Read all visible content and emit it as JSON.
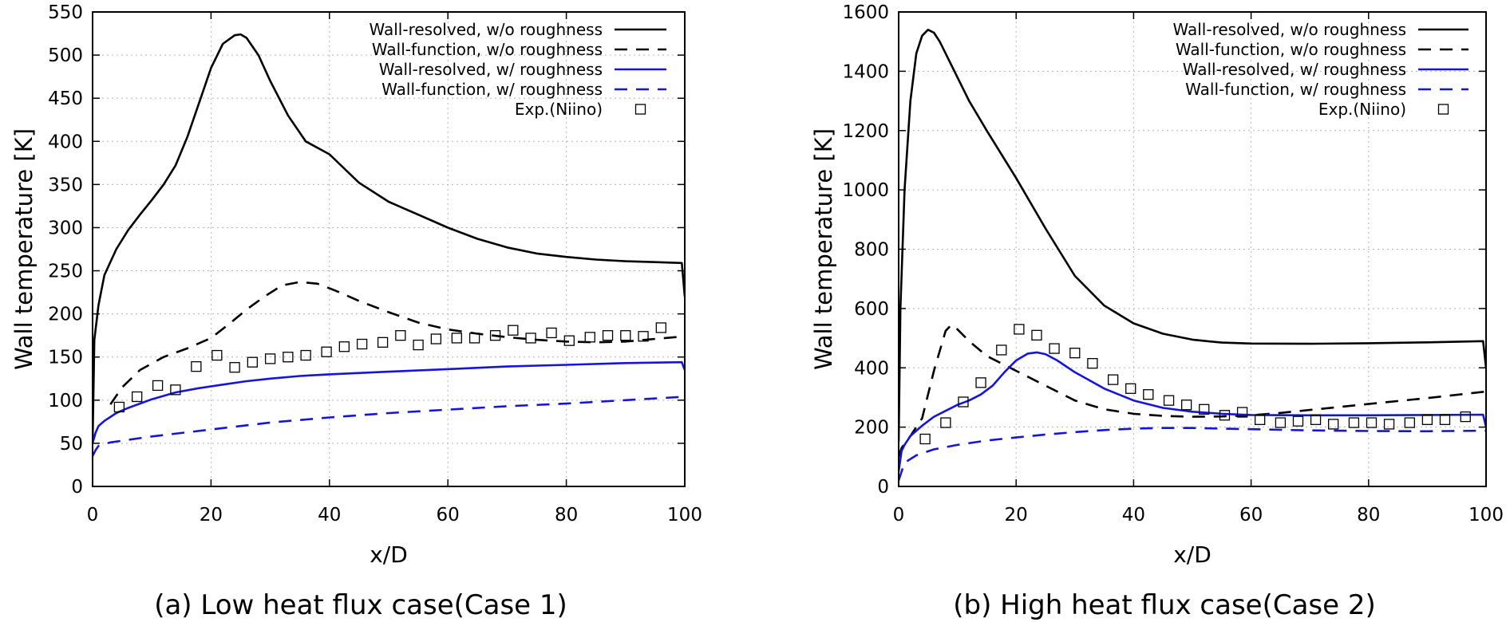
{
  "chart_data": [
    {
      "type": "line",
      "caption": "(a) Low heat flux case(Case 1)",
      "xlabel": "x/D",
      "ylabel": "Wall temperature [K]",
      "xlim": [
        0,
        100
      ],
      "ylim": [
        0,
        550
      ],
      "xticks": [
        0,
        20,
        40,
        60,
        80,
        100
      ],
      "yticks": [
        0,
        50,
        100,
        150,
        200,
        250,
        300,
        350,
        400,
        450,
        500,
        550
      ],
      "grid": true,
      "legend_position": "top-right",
      "series": [
        {
          "name": "Wall-resolved, w/o roughness",
          "color": "#000000",
          "style": "solid",
          "x": [
            0,
            0.3,
            1,
            2,
            4,
            6,
            8,
            10,
            12,
            14,
            16,
            18,
            20,
            22,
            24,
            25,
            26,
            28,
            30,
            33,
            36,
            40,
            45,
            50,
            55,
            60,
            65,
            70,
            75,
            80,
            85,
            90,
            95,
            99.5,
            100
          ],
          "y": [
            50,
            170,
            210,
            245,
            275,
            297,
            315,
            332,
            350,
            372,
            405,
            445,
            485,
            513,
            523,
            524,
            520,
            500,
            470,
            430,
            400,
            385,
            352,
            330,
            315,
            300,
            287,
            277,
            270,
            266,
            263,
            261,
            260,
            259,
            220
          ]
        },
        {
          "name": "Wall-function, w/o roughness",
          "color": "#000000",
          "style": "dashed",
          "x": [
            3,
            5,
            8,
            12,
            16,
            20,
            23,
            26,
            29,
            32,
            35,
            38,
            41,
            45,
            50,
            55,
            60,
            65,
            70,
            75,
            80,
            85,
            90,
            95,
            100
          ],
          "y": [
            95,
            115,
            135,
            150,
            160,
            172,
            188,
            205,
            220,
            233,
            237,
            235,
            227,
            215,
            202,
            190,
            182,
            177,
            173,
            170,
            168,
            167,
            168,
            171,
            174
          ]
        },
        {
          "name": "Wall-resolved, w/ roughness",
          "color": "#1414dc",
          "style": "solid",
          "x": [
            0,
            0.5,
            1,
            2,
            4,
            6,
            8,
            10,
            14,
            18,
            22,
            26,
            30,
            35,
            40,
            50,
            60,
            70,
            80,
            90,
            99.5,
            100
          ],
          "y": [
            50,
            62,
            70,
            76,
            85,
            91,
            96,
            101,
            109,
            114,
            118,
            122,
            125,
            128,
            130,
            133,
            136,
            139,
            141,
            143,
            144,
            135
          ]
        },
        {
          "name": "Wall-function, w/ roughness",
          "color": "#1414dc",
          "style": "dashed",
          "x": [
            0,
            0.5,
            1,
            3,
            6,
            10,
            20,
            30,
            40,
            50,
            60,
            70,
            80,
            90,
            100
          ],
          "y": [
            35,
            42,
            47,
            51,
            54,
            58,
            66,
            74,
            80,
            85,
            89,
            93,
            96,
            100,
            104
          ]
        },
        {
          "name": "Exp.(Niino)",
          "color": "#000000",
          "style": "markers",
          "x": [
            4.5,
            7.5,
            11,
            14,
            17.5,
            21,
            24,
            27,
            30,
            33,
            36,
            39.5,
            42.5,
            45.5,
            49,
            52,
            55,
            58,
            61.5,
            64.5,
            68,
            71,
            74,
            77.5,
            80.5,
            84,
            87,
            90,
            93,
            96
          ],
          "y": [
            92,
            104,
            117,
            112,
            139,
            152,
            138,
            144,
            148,
            150,
            152,
            156,
            162,
            165,
            167,
            175,
            164,
            171,
            172,
            172,
            175,
            181,
            172,
            178,
            169,
            173,
            175,
            175,
            174,
            184
          ]
        }
      ]
    },
    {
      "type": "line",
      "caption": "(b) High heat flux case(Case 2)",
      "xlabel": "x/D",
      "ylabel": "Wall temperature [K]",
      "xlim": [
        0,
        100
      ],
      "ylim": [
        0,
        1600
      ],
      "xticks": [
        0,
        20,
        40,
        60,
        80,
        100
      ],
      "yticks": [
        0,
        200,
        400,
        600,
        800,
        1000,
        1200,
        1400,
        1600
      ],
      "grid": true,
      "legend_position": "top-right",
      "series": [
        {
          "name": "Wall-resolved, w/o roughness",
          "color": "#000000",
          "style": "solid",
          "x": [
            0,
            0.3,
            1,
            2,
            3,
            4,
            5,
            6,
            7,
            9,
            12,
            15,
            20,
            25,
            30,
            35,
            40,
            45,
            50,
            55,
            60,
            70,
            80,
            90,
            99.5,
            100
          ],
          "y": [
            150,
            600,
            1000,
            1300,
            1460,
            1520,
            1540,
            1530,
            1500,
            1420,
            1300,
            1200,
            1040,
            870,
            710,
            610,
            550,
            515,
            495,
            485,
            482,
            481,
            483,
            486,
            490,
            400
          ]
        },
        {
          "name": "Wall-function, w/o roughness",
          "color": "#000000",
          "style": "dashed",
          "x": [
            0,
            0.5,
            2,
            4,
            6,
            8,
            9,
            10,
            12,
            15,
            20,
            25,
            30,
            35,
            40,
            45,
            50,
            55,
            60,
            65,
            70,
            80,
            90,
            100
          ],
          "y": [
            100,
            130,
            170,
            230,
            390,
            525,
            545,
            530,
            490,
            440,
            390,
            340,
            290,
            260,
            245,
            238,
            235,
            236,
            240,
            248,
            258,
            278,
            298,
            320
          ]
        },
        {
          "name": "Wall-resolved, w/ roughness",
          "color": "#1414dc",
          "style": "solid",
          "x": [
            0,
            0.5,
            1,
            2,
            4,
            6,
            8,
            10,
            12,
            14,
            16,
            18,
            20,
            22,
            23.5,
            25,
            27,
            30,
            35,
            40,
            45,
            50,
            55,
            60,
            70,
            80,
            90,
            99.5,
            100
          ],
          "y": [
            50,
            120,
            140,
            170,
            205,
            235,
            255,
            275,
            290,
            310,
            340,
            385,
            425,
            448,
            452,
            446,
            425,
            385,
            330,
            290,
            265,
            252,
            245,
            241,
            240,
            240,
            241,
            242,
            200
          ]
        },
        {
          "name": "Wall-function, w/ roughness",
          "color": "#1414dc",
          "style": "dashed",
          "x": [
            0,
            0.5,
            1,
            3,
            6,
            10,
            15,
            20,
            25,
            30,
            35,
            40,
            45,
            50,
            55,
            60,
            65,
            70,
            80,
            90,
            100
          ],
          "y": [
            20,
            50,
            80,
            105,
            125,
            140,
            155,
            165,
            175,
            183,
            190,
            195,
            197,
            197,
            195,
            193,
            191,
            189,
            187,
            186,
            188
          ]
        },
        {
          "name": "Exp.(Niino)",
          "color": "#000000",
          "style": "markers",
          "x": [
            4.5,
            8,
            11,
            14,
            17.5,
            20.5,
            23.5,
            26.5,
            30,
            33,
            36.5,
            39.5,
            42.5,
            46,
            49,
            52,
            55.5,
            58.5,
            61.5,
            65,
            68,
            71,
            74,
            77.5,
            80.5,
            83.5,
            87,
            90,
            93,
            96.5
          ],
          "y": [
            160,
            215,
            285,
            350,
            460,
            530,
            510,
            465,
            450,
            415,
            360,
            330,
            310,
            290,
            275,
            260,
            240,
            250,
            225,
            215,
            220,
            225,
            210,
            215,
            215,
            210,
            215,
            225,
            225,
            235
          ]
        }
      ]
    }
  ]
}
